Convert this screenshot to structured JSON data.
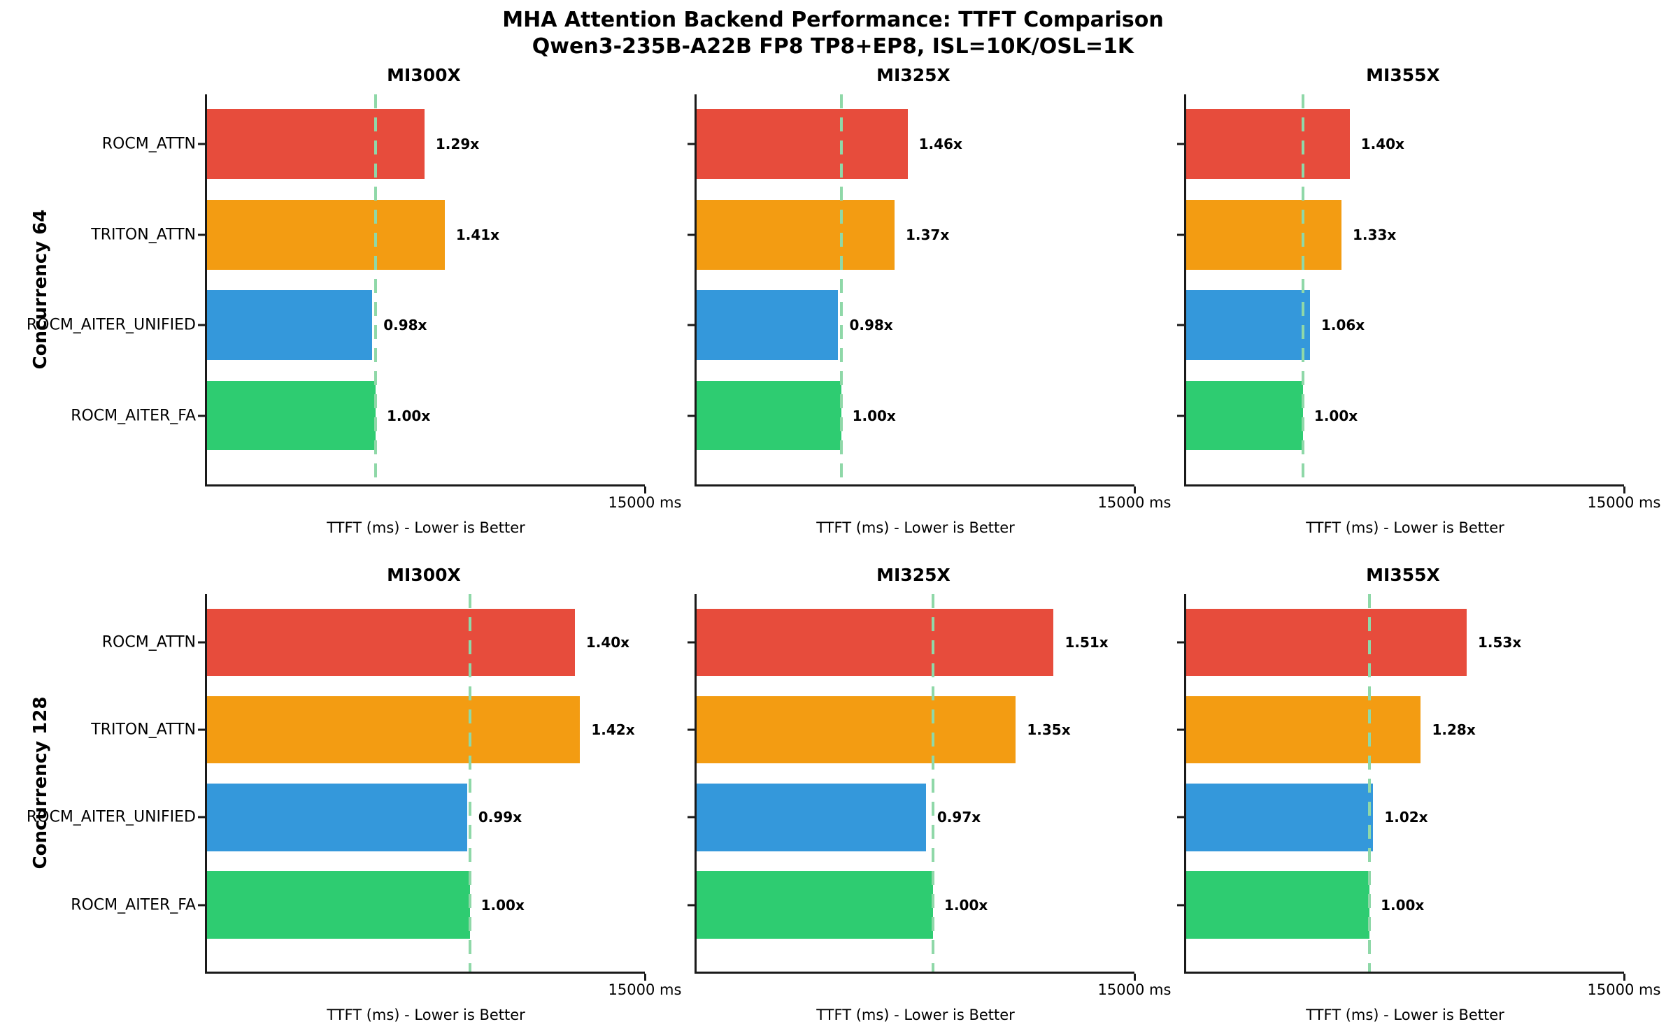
{
  "page": {
    "background": "#ffffff",
    "text_color": "#000000"
  },
  "chart_data": {
    "type": "bar",
    "orientation": "horizontal",
    "title": "MHA Attention Backend Performance: TTFT Comparison",
    "subtitle": "Qwen3-235B-A22B FP8 TP8+EP8, ISL=10K/OSL=1K",
    "grid": false,
    "legend": "none",
    "xlabel": "TTFT (ms) - Lower is Better",
    "xlim": [
      0,
      15000
    ],
    "x_tick_label": "15000 ms",
    "value_suffix": "x",
    "categories": [
      "ROCM_ATTN",
      "TRITON_ATTN",
      "ROCM_AITER_UNIFIED",
      "ROCM_AITER_FA"
    ],
    "bar_colors": [
      "#e74c3c",
      "#f39c12",
      "#3498db",
      "#2ecc71"
    ],
    "baseline_line_color": "#8fd8a8",
    "axis_color": "#1a1a1a",
    "baseline_note": "dashed line marks the ROCM_AITER_FA 1.00x TTFT; baseline ms values estimated from bar geometry on the shared 0-15000 ms axis",
    "rows": [
      {
        "row_label": "Concurrency 64",
        "panels": [
          {
            "title": "MI300X",
            "baseline_ttft_ms_est": 5775,
            "ttft_ratios": [
              1.29,
              1.41,
              0.98,
              1.0
            ]
          },
          {
            "title": "MI325X",
            "baseline_ttft_ms_est": 4950,
            "ttft_ratios": [
              1.46,
              1.37,
              0.98,
              1.0
            ]
          },
          {
            "title": "MI355X",
            "baseline_ttft_ms_est": 4000,
            "ttft_ratios": [
              1.4,
              1.33,
              1.06,
              1.0
            ]
          }
        ]
      },
      {
        "row_label": "Concurrency 128",
        "panels": [
          {
            "title": "MI300X",
            "baseline_ttft_ms_est": 9000,
            "ttft_ratios": [
              1.4,
              1.42,
              0.99,
              1.0
            ]
          },
          {
            "title": "MI325X",
            "baseline_ttft_ms_est": 8100,
            "ttft_ratios": [
              1.51,
              1.35,
              0.97,
              1.0
            ]
          },
          {
            "title": "MI355X",
            "baseline_ttft_ms_est": 6280,
            "ttft_ratios": [
              1.53,
              1.28,
              1.02,
              1.0
            ]
          }
        ]
      }
    ]
  }
}
